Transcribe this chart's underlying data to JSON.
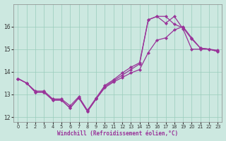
{
  "xlabel": "Windchill (Refroidissement éolien,°C)",
  "bg_color": "#cce8e0",
  "grid_color": "#99ccbb",
  "line_color": "#993399",
  "xlim": [
    -0.5,
    23.5
  ],
  "ylim": [
    11.8,
    17.0
  ],
  "yticks": [
    12,
    13,
    14,
    15,
    16
  ],
  "xticks": [
    0,
    1,
    2,
    3,
    4,
    5,
    6,
    7,
    8,
    9,
    10,
    11,
    12,
    13,
    14,
    15,
    16,
    17,
    18,
    19,
    20,
    21,
    22,
    23
  ],
  "series": [
    {
      "x": [
        0,
        1,
        2,
        3,
        4,
        5,
        6,
        7,
        8,
        9,
        10,
        11,
        12,
        13,
        14,
        15,
        16,
        17,
        18,
        19,
        20,
        21,
        22,
        23
      ],
      "y": [
        13.7,
        13.5,
        13.1,
        13.1,
        12.75,
        12.75,
        12.4,
        12.85,
        12.25,
        12.8,
        13.3,
        13.55,
        13.75,
        13.95,
        14.1,
        14.85,
        15.4,
        15.5,
        15.85,
        16.0,
        15.5,
        15.05,
        15.0,
        14.9
      ]
    },
    {
      "x": [
        0,
        1,
        2,
        3,
        4,
        5,
        6,
        7,
        8,
        9,
        10,
        11,
        12,
        13,
        14,
        15,
        16,
        17,
        18,
        19,
        20,
        21,
        22,
        23
      ],
      "y": [
        13.7,
        13.5,
        13.15,
        13.15,
        12.8,
        12.8,
        12.5,
        12.9,
        12.3,
        12.85,
        13.4,
        13.65,
        13.95,
        14.2,
        14.4,
        16.3,
        16.45,
        16.45,
        16.1,
        15.95,
        15.45,
        15.05,
        15.0,
        14.9
      ]
    },
    {
      "x": [
        0,
        1,
        2,
        3,
        4,
        5,
        6,
        7,
        8,
        9,
        10,
        11,
        12,
        13,
        14,
        15,
        16,
        17,
        18,
        19,
        20,
        21,
        22,
        23
      ],
      "y": [
        13.7,
        13.5,
        13.1,
        13.1,
        12.75,
        12.75,
        12.4,
        12.85,
        12.25,
        12.8,
        13.35,
        13.6,
        13.85,
        14.1,
        14.35,
        16.3,
        16.45,
        16.15,
        16.45,
        15.9,
        15.0,
        15.0,
        15.0,
        14.95
      ]
    }
  ]
}
